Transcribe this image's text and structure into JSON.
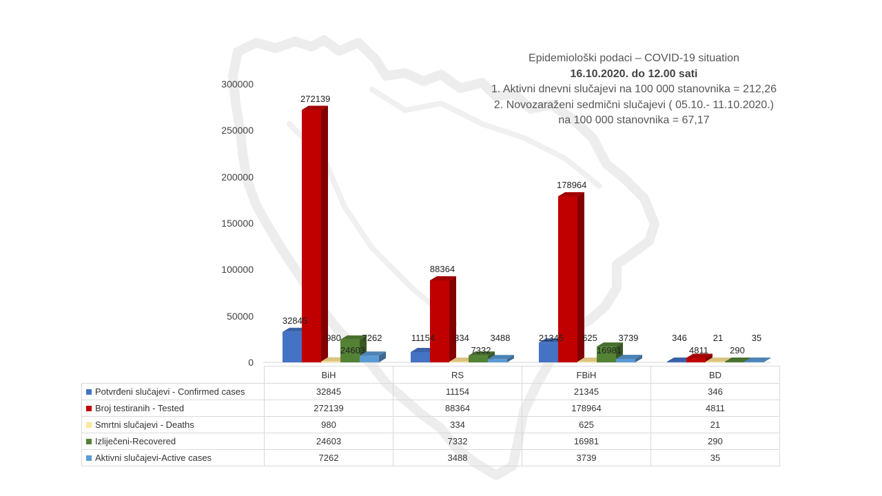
{
  "info": {
    "line1": "Epidemiološki podaci – COVID-19 situation",
    "line2": "16.10.2020. do 12.00 sati",
    "line3": "1. Aktivni dnevni slučajevi na 100 000 stanovnika = 212,26",
    "line4": "2. Novozaraženi sedmični slučajevi ( 05.10.- 11.10.2020.)",
    "line5": "na 100 000 stanovnika = 67,17"
  },
  "chart_data": {
    "type": "bar",
    "categories": [
      "BiH",
      "RS",
      "FBiH",
      "BD"
    ],
    "series": [
      {
        "name": "Potvrđeni slučajevi - Confirmed cases",
        "values": [
          32845,
          11154,
          21345,
          346
        ],
        "color": "#4472c4"
      },
      {
        "name": "Broj testiranih - Tested",
        "values": [
          272139,
          88364,
          178964,
          4811
        ],
        "color": "#c00000"
      },
      {
        "name": "Smrtni slučajevi - Deaths",
        "values": [
          980,
          334,
          625,
          21
        ],
        "color": "#ffe699"
      },
      {
        "name": "Izliječeni-Recovered",
        "values": [
          24603,
          7332,
          16981,
          290
        ],
        "color": "#548235"
      },
      {
        "name": "Aktivni slučajevi-Active cases",
        "values": [
          7262,
          3488,
          3739,
          35
        ],
        "color": "#5b9bd5"
      }
    ],
    "ylim": [
      0,
      300000
    ],
    "yticks": [
      "300000",
      "250000",
      "200000",
      "150000",
      "100000",
      "50000",
      "0"
    ],
    "legend": "data-table",
    "grid": false
  }
}
